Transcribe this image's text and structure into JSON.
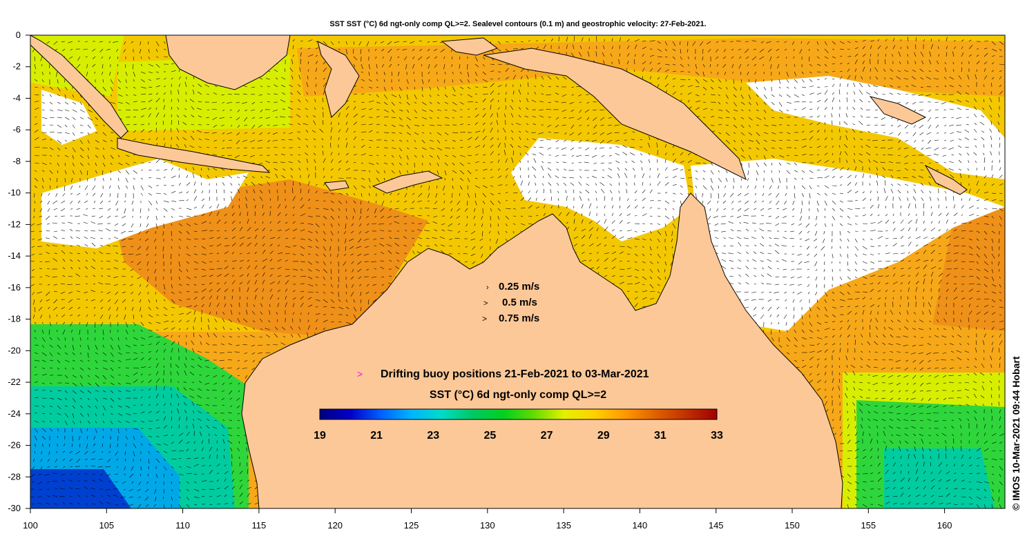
{
  "title": "SST SST (°C) 6d ngt-only comp QL>=2. Sealevel contours (0.1 m) and geostrophic velocity: 27-Feb-2021.",
  "side_credit": "© IMOS 10-Mar-2021 09:44 Hobart",
  "velocity_legend": [
    {
      "glyph": "›",
      "label": "0.25 m/s"
    },
    {
      "glyph": ">",
      "label": "0.5 m/s"
    },
    {
      "glyph": ">",
      "label": "0.75 m/s"
    }
  ],
  "buoy_legend": {
    "glyph": ">",
    "label": "Drifting buoy positions 21-Feb-2021 to 03-Mar-2021",
    "color": "#ff00ff"
  },
  "colorbar": {
    "title": "SST (°C) 6d ngt-only comp QL>=2",
    "ticks": [
      "19",
      "21",
      "23",
      "25",
      "27",
      "29",
      "31",
      "33"
    ],
    "stops": [
      "#000080",
      "#0000c8",
      "#0060ff",
      "#00b4ff",
      "#00dcc8",
      "#00c864",
      "#00d020",
      "#60dc00",
      "#e6f000",
      "#ffd000",
      "#ff9800",
      "#e06000",
      "#c03000",
      "#a00000"
    ]
  },
  "x_ticks": [
    "100",
    "105",
    "110",
    "115",
    "120",
    "125",
    "130",
    "135",
    "140",
    "145",
    "150",
    "155",
    "160"
  ],
  "y_ticks": [
    "0",
    "-2",
    "-4",
    "-6",
    "-8",
    "-10",
    "-12",
    "-14",
    "-16",
    "-18",
    "-20",
    "-22",
    "-24",
    "-26",
    "-28",
    "-30"
  ],
  "colors": {
    "land": "#fcc898",
    "warm": "#f7a818",
    "hot": "#ef9018",
    "mild": "#f4c800",
    "lime": "#d8ee00",
    "green": "#2ed63c",
    "teal": "#00cca0",
    "cyan": "#00a8e8",
    "blue": "#0040d0",
    "cloud": "#ffffff"
  }
}
